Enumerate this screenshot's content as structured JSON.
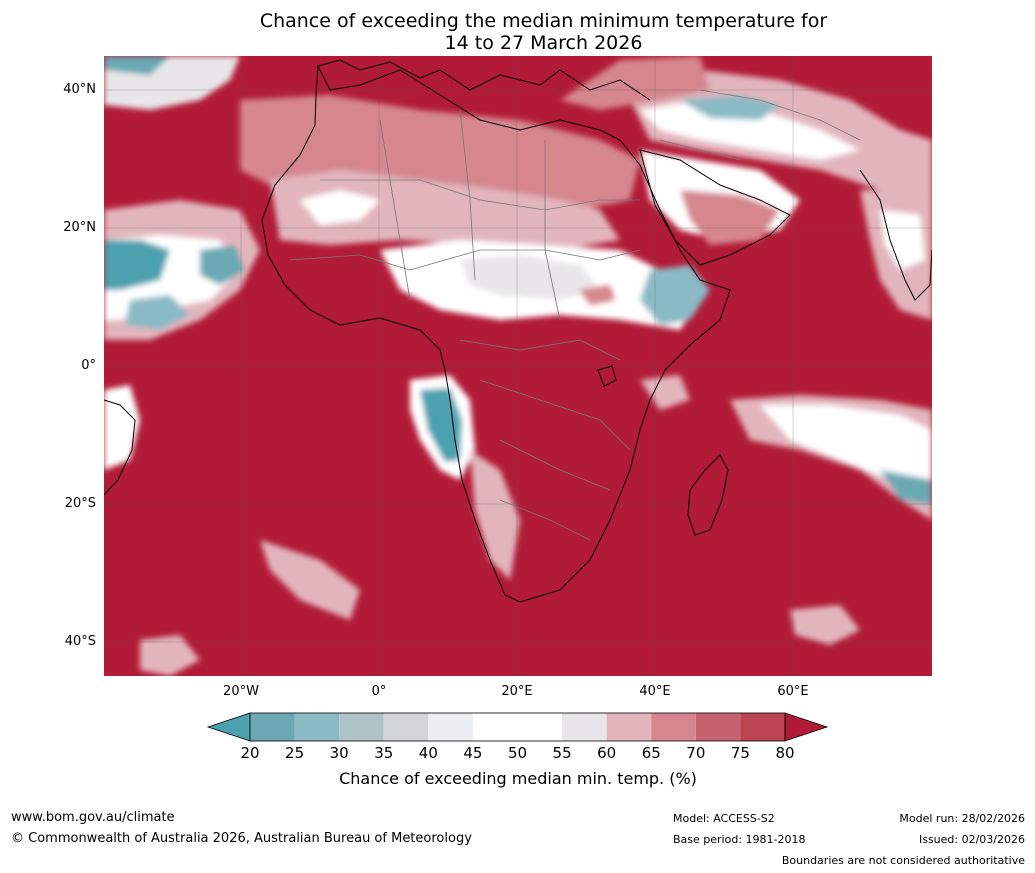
{
  "title_line1": "Chance of exceeding the median minimum temperature for",
  "title_line2": "14 to 27 March 2026",
  "lat_ticks": [
    "40°N",
    "20°N",
    "0°",
    "20°S",
    "40°S"
  ],
  "lon_ticks": [
    "20°W",
    "0°",
    "20°E",
    "40°E",
    "60°E"
  ],
  "colorbar": {
    "levels": [
      "20",
      "25",
      "30",
      "35",
      "40",
      "45",
      "50",
      "55",
      "60",
      "65",
      "70",
      "75",
      "80"
    ],
    "colors": [
      "#4ba1b0",
      "#6aa9b4",
      "#8bb9c4",
      "#adc3c8",
      "#d2d6d8",
      "#eceff1",
      "#ffffff",
      "#ffffff",
      "#e8e6e8",
      "#e2b5bc",
      "#d5868f",
      "#c76370",
      "#bd4452",
      "#b21b38"
    ],
    "label": "Chance of exceeding median min. temp. (%)"
  },
  "footer": {
    "website": "www.bom.gov.au/climate",
    "copyright": "© Commonwealth of Australia 2026, Australian Bureau of Meteorology",
    "model": "Model: ACCESS-S2",
    "base_period": "Base period: 1981-2018",
    "model_run": "Model run: 28/02/2026",
    "issued": "Issued: 02/03/2026",
    "disclaimer": "Boundaries are not considered authoritative"
  }
}
